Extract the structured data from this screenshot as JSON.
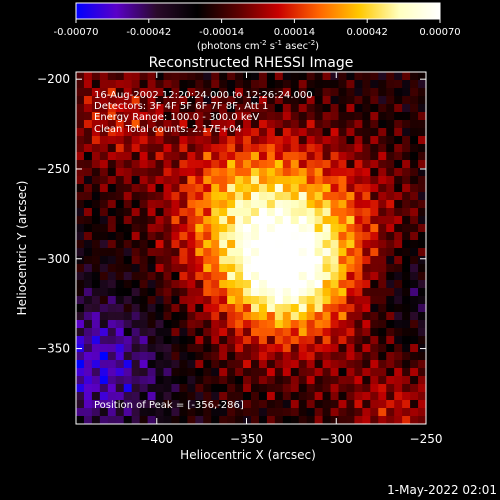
{
  "chart_data": {
    "type": "heatmap",
    "title": "Reconstructed RHESSI Image",
    "xlabel": "Heliocentric X (arcsec)",
    "ylabel": "Heliocentric Y (arcsec)",
    "xlim": [
      -445,
      -250
    ],
    "ylim": [
      -392,
      -196
    ],
    "xticks": [
      -400,
      -350,
      -300,
      -250
    ],
    "yticks": [
      -200,
      -250,
      -300,
      -350
    ],
    "colorbar": {
      "range": [
        -0.0007,
        0.0007
      ],
      "ticks": [
        "-0.00070",
        "-0.00042",
        "-0.00014",
        "0.00014",
        "0.00042",
        "0.00070"
      ],
      "tick_values": [
        -0.0007,
        -0.00042,
        -0.00014,
        0.00014,
        0.00042,
        0.0007
      ],
      "unit_prefix": "(photons cm",
      "unit_sup1": "-2",
      "unit_mid": " s",
      "unit_sup2": "-1",
      "unit_suffix": " asec",
      "unit_sup3": "-2",
      "unit_end": ")",
      "colormap": [
        "#0000ff",
        "#5a00c8",
        "#2a0a2a",
        "#000000",
        "#5a0000",
        "#c80000",
        "#ff6400",
        "#ffc800",
        "#ffffc0",
        "#ffffff"
      ]
    },
    "info": [
      "16-Aug-2002 12:20:24.000 to 12:26:24.000",
      "Detectors: 3F 4F 5F 6F 7F 8F, Att 1",
      "Energy Range: 100.0 - 300.0 keV",
      "Clean    Total counts: 2.17E+04"
    ],
    "peak_label": "Position of Peak = [-356,-286]",
    "peak": [
      -356,
      -286
    ],
    "footer_date": "1-May-2022 02:01"
  }
}
